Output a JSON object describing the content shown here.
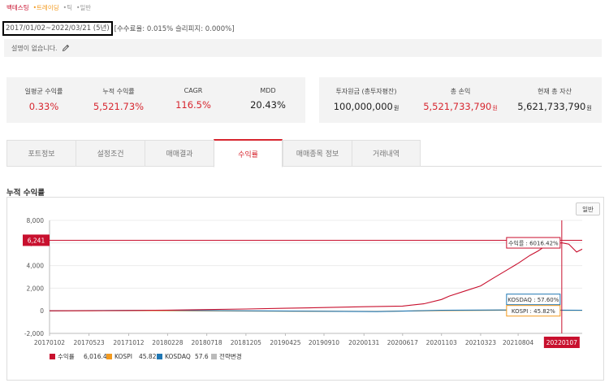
{
  "tags": [
    "백테스팅",
    "•트레이딩",
    "•틱",
    "•일반"
  ],
  "period": {
    "range": "2017/01/02~2022/03/21 (5년)",
    "fee": "[수수료율: 0.015% 슬리피지: 0.000%]"
  },
  "description": "설명이 없습니다.",
  "stats_left": [
    {
      "label": "일평균 수익률",
      "value": "0.33%",
      "red": true
    },
    {
      "label": "누적 수익률",
      "value": "5,521.73%",
      "red": true
    },
    {
      "label": "CAGR",
      "value": "116.5%",
      "red": true
    },
    {
      "label": "MDD",
      "value": "20.43%",
      "red": false
    }
  ],
  "stats_right": [
    {
      "label": "투자원금 (총투자평잔)",
      "value": "100,000,000",
      "unit": "원",
      "red": false
    },
    {
      "label": "총 손익",
      "value": "5,521,733,790",
      "unit": "원",
      "red": true
    },
    {
      "label": "현재 총 자산",
      "value": "5,621,733,790",
      "unit": "원",
      "red": false
    }
  ],
  "tabs": [
    {
      "label": "포트정보",
      "active": false
    },
    {
      "label": "설정조건",
      "active": false
    },
    {
      "label": "매매결과",
      "active": false
    },
    {
      "label": "수익률",
      "active": true
    },
    {
      "label": "매매종목 정보",
      "active": false
    },
    {
      "label": "거래내역",
      "active": false
    }
  ],
  "section_title": "누적 수익률",
  "normal_button": "일반",
  "colors": {
    "accent": "#c8102e",
    "kospi": "#f39a1e",
    "kosdaq": "#1f77b4",
    "change": "#bbbbbb"
  },
  "chart_data": {
    "type": "line",
    "ylim": [
      -2000,
      8000
    ],
    "yticks": [
      "8,000",
      "6,000",
      "4,000",
      "2,000",
      "0",
      "-2,000"
    ],
    "ytick_values": [
      8000,
      6000,
      4000,
      2000,
      0,
      -2000
    ],
    "xticks": [
      "20170102",
      "20170523",
      "20171012",
      "20180228",
      "20180718",
      "20181205",
      "20190425",
      "20190910",
      "20200131",
      "20200617",
      "20201103",
      "20210323",
      "20210804"
    ],
    "x_end": "20220321",
    "crosshair_x": "20220107",
    "crosshair_y_label": "6,241",
    "crosshair_y_value": 6241,
    "series": [
      {
        "name": "수익률",
        "legend_value": "6,016.42",
        "tooltip": "수익률 : 6016.42%",
        "points": [
          [
            "20170102",
            0
          ],
          [
            "20170601",
            10
          ],
          [
            "20171012",
            30
          ],
          [
            "20180228",
            60
          ],
          [
            "20180718",
            110
          ],
          [
            "20181205",
            160
          ],
          [
            "20190425",
            220
          ],
          [
            "20190910",
            290
          ],
          [
            "20200131",
            360
          ],
          [
            "20200317",
            380
          ],
          [
            "20200617",
            420
          ],
          [
            "20200901",
            620
          ],
          [
            "20201103",
            1000
          ],
          [
            "20201201",
            1300
          ],
          [
            "20210201",
            1800
          ],
          [
            "20210323",
            2200
          ],
          [
            "20210501",
            2800
          ],
          [
            "20210701",
            3700
          ],
          [
            "20210804",
            4200
          ],
          [
            "20210915",
            4900
          ],
          [
            "20211015",
            5300
          ],
          [
            "20211101",
            5600
          ],
          [
            "20211201",
            5850
          ],
          [
            "20220107",
            6016
          ],
          [
            "20220201",
            5900
          ],
          [
            "20220301",
            5200
          ],
          [
            "20220321",
            5450
          ]
        ]
      },
      {
        "name": "KOSPI",
        "legend_value": "45.82",
        "tooltip": "KOSPI : 45.82%",
        "points": [
          [
            "20170102",
            0
          ],
          [
            "20180101",
            20
          ],
          [
            "20190101",
            -30
          ],
          [
            "20200317",
            -60
          ],
          [
            "20201103",
            20
          ],
          [
            "20210601",
            60
          ],
          [
            "20220107",
            46
          ],
          [
            "20220321",
            40
          ]
        ]
      },
      {
        "name": "KOSDAQ",
        "legend_value": "57.6",
        "tooltip": "KOSDAQ : 57.60%",
        "points": [
          [
            "20170102",
            0
          ],
          [
            "20180101",
            50
          ],
          [
            "20190101",
            -10
          ],
          [
            "20200317",
            -70
          ],
          [
            "20201103",
            40
          ],
          [
            "20210601",
            70
          ],
          [
            "20220107",
            58
          ],
          [
            "20220321",
            52
          ]
        ]
      },
      {
        "name": "전략변경",
        "legend_value": "",
        "points": []
      }
    ]
  }
}
